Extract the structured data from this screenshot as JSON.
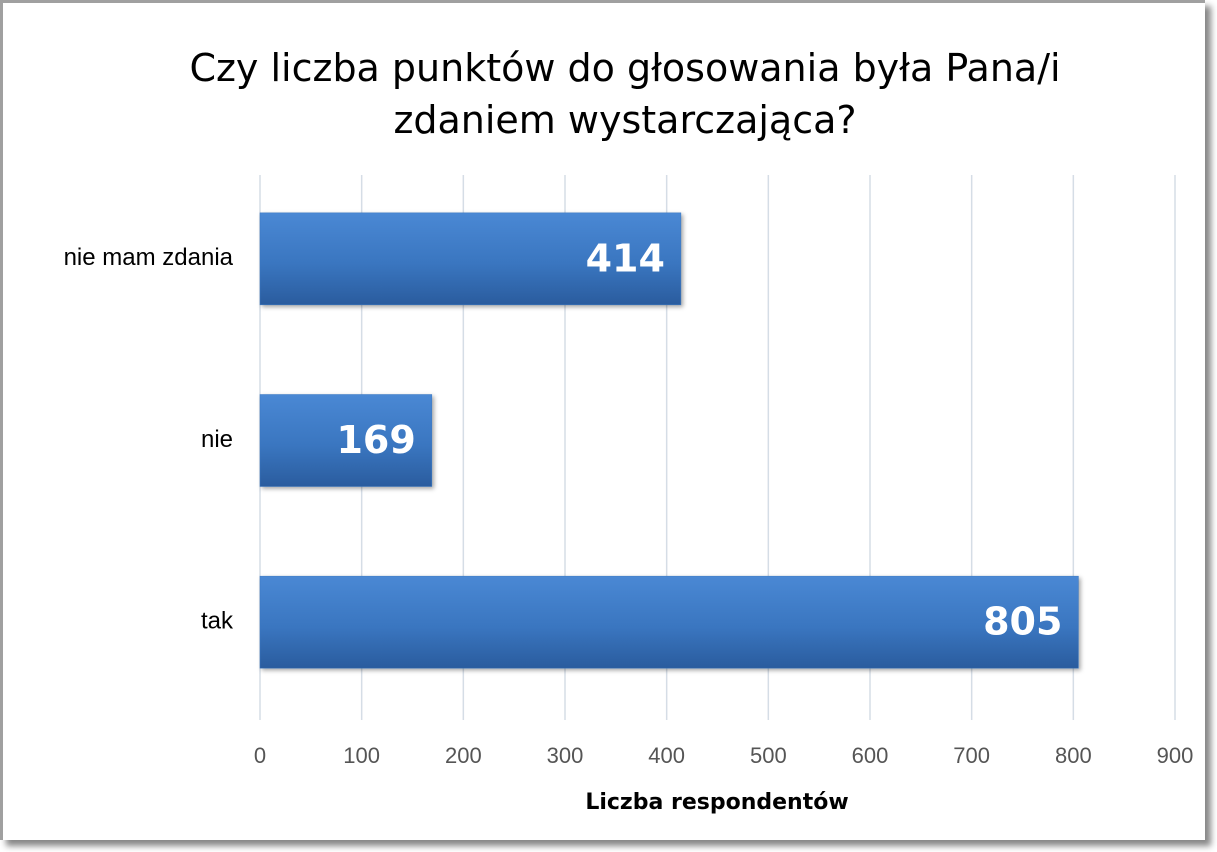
{
  "chart_data": {
    "type": "barh",
    "title": "Czy liczba punktów do głosowania była Pana/i zdaniem wystarczająca?",
    "categories": [
      "nie mam zdania",
      "nie",
      "tak"
    ],
    "values": [
      414,
      169,
      805
    ],
    "color": "#3a78c3",
    "xlim": [
      0,
      900
    ],
    "xticks": [
      0,
      100,
      200,
      300,
      400,
      500,
      600,
      700,
      800,
      900
    ],
    "xlabel": "Liczba respondentów",
    "grid": true
  }
}
